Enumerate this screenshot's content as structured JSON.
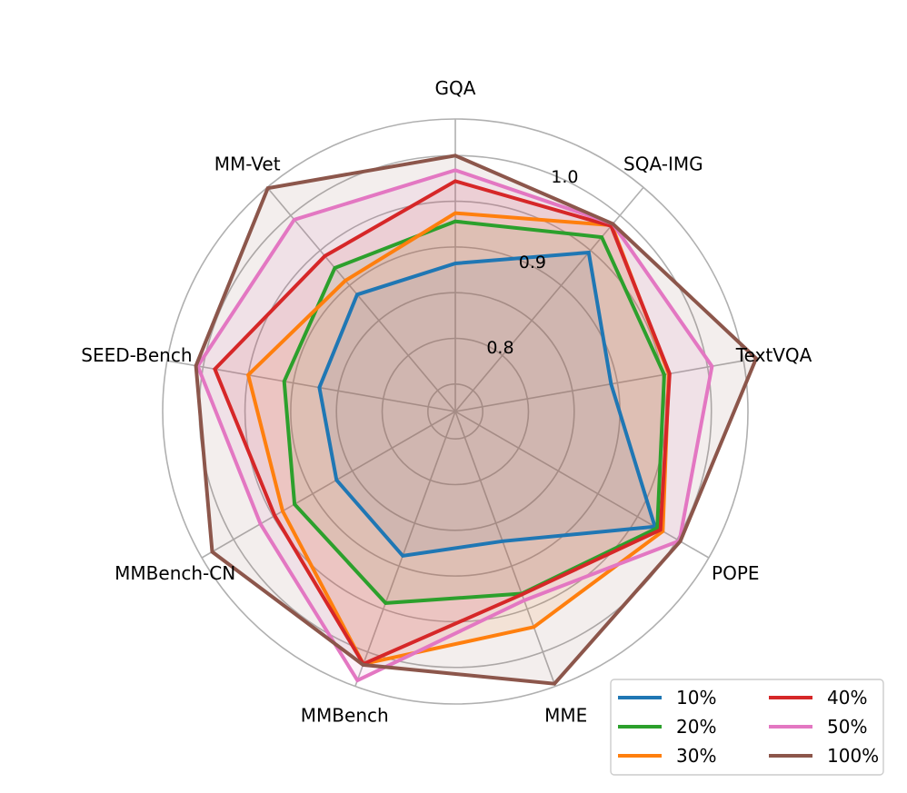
{
  "chart_data": {
    "type": "radar",
    "axes": [
      "GQA",
      "SQA-IMG",
      "TextVQA",
      "POPE",
      "MME",
      "MMBench",
      "MMBench-CN",
      "SEED-Bench",
      "MM-Vet"
    ],
    "rlim": [
      0.72,
      1.04
    ],
    "rticks": [
      {
        "value": 0.8,
        "label": "0.8"
      },
      {
        "value": 0.9,
        "label": "0.9"
      },
      {
        "value": 1.0,
        "label": "1.0"
      }
    ],
    "grid": true,
    "legend_position": "bottom-right",
    "legend_columns": 2,
    "series": [
      {
        "name": "10%",
        "color": "#1f77b4",
        "values": [
          0.882,
          0.947,
          0.893,
          0.972,
          0.871,
          0.888,
          0.87,
          0.871,
          0.887
        ]
      },
      {
        "name": "20%",
        "color": "#2ca02c",
        "values": [
          0.928,
          0.969,
          0.952,
          0.975,
          0.932,
          0.943,
          0.923,
          0.91,
          0.925
        ]
      },
      {
        "name": "30%",
        "color": "#ff7f0e",
        "values": [
          0.937,
          0.986,
          0.957,
          0.982,
          0.971,
          1.014,
          0.938,
          0.95,
          0.907
        ]
      },
      {
        "name": "40%",
        "color": "#d62728",
        "values": [
          0.972,
          0.985,
          0.958,
          0.979,
          0.933,
          1.014,
          0.948,
          0.987,
          0.942
        ]
      },
      {
        "name": "50%",
        "color": "#e377c2",
        "values": [
          0.984,
          0.988,
          1.005,
          1.003,
          0.94,
          1.033,
          0.966,
          1.006,
          0.994
        ]
      },
      {
        "name": "100%",
        "color": "#8c564b",
        "values": [
          1.0,
          0.988,
          1.054,
          1.004,
          1.037,
          1.015,
          1.027,
          1.008,
          1.039
        ]
      }
    ]
  }
}
